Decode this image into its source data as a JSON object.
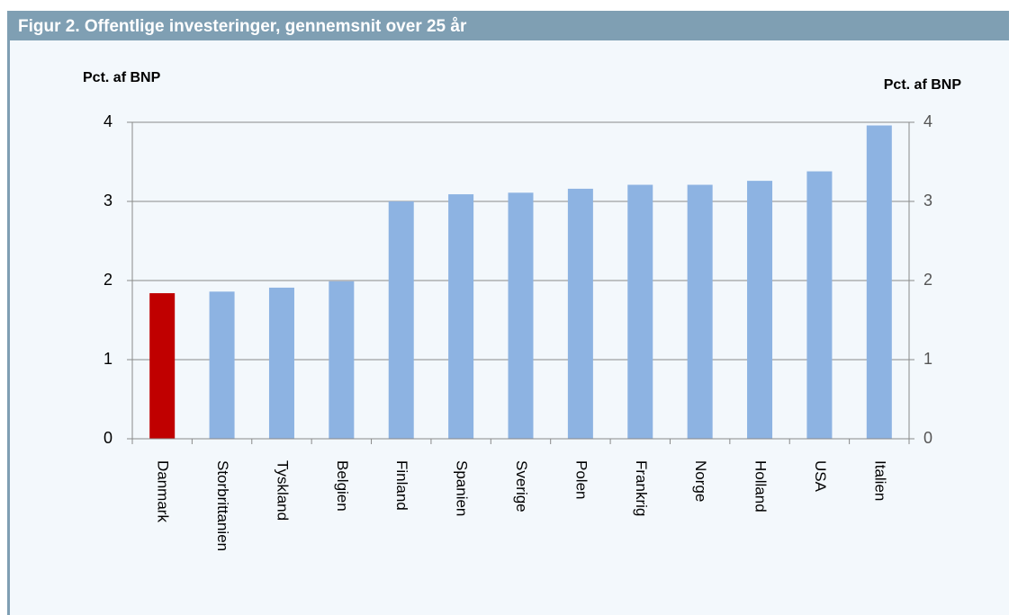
{
  "chart_data": {
    "type": "bar",
    "title": "Figur 2. Offentlige investeringer, gennemsnit over 25 år",
    "y_label": "Pct. af BNP",
    "y2_label": "Pct. af BNP",
    "categories": [
      "Danmark",
      "Storbrittanien",
      "Tyskland",
      "Belgien",
      "Finland",
      "Spanien",
      "Sverige",
      "Polen",
      "Frankrig",
      "Norge",
      "Holland",
      "USA",
      "Italien"
    ],
    "values": [
      1.84,
      1.86,
      1.91,
      1.99,
      3.0,
      3.09,
      3.11,
      3.16,
      3.21,
      3.21,
      3.26,
      3.38,
      3.96
    ],
    "colors": [
      "#c00000",
      "#8db3e2",
      "#8db3e2",
      "#8db3e2",
      "#8db3e2",
      "#8db3e2",
      "#8db3e2",
      "#8db3e2",
      "#8db3e2",
      "#8db3e2",
      "#8db3e2",
      "#8db3e2",
      "#8db3e2"
    ],
    "ylim": [
      0,
      4
    ],
    "yticks": [
      0,
      1,
      2,
      3,
      4
    ],
    "y2lim": [
      0,
      4
    ],
    "y2ticks": [
      0,
      1,
      2,
      3,
      4
    ],
    "grid": true
  }
}
